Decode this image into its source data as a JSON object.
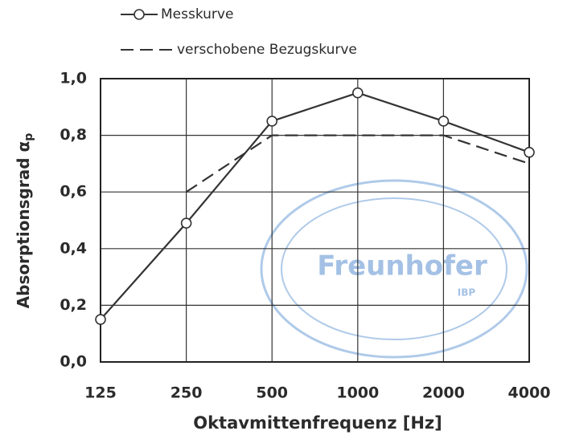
{
  "chart_data": {
    "type": "line",
    "categories": [
      "125",
      "250",
      "500",
      "1000",
      "2000",
      "4000"
    ],
    "series": [
      {
        "name": "Messkurve",
        "color": "#333333",
        "style": "solid",
        "marker": "circle",
        "values": [
          0.15,
          0.49,
          0.85,
          0.95,
          0.85,
          0.74
        ]
      },
      {
        "name": "verschobene Bezugskurve",
        "color": "#333333",
        "style": "dashed",
        "values": [
          null,
          0.6,
          0.8,
          0.8,
          0.8,
          0.7
        ]
      }
    ],
    "ylim": [
      0,
      1
    ],
    "yticks": [
      {
        "value": 0,
        "label": "0,0"
      },
      {
        "value": 0.2,
        "label": "0,2"
      },
      {
        "value": 0.4,
        "label": "0,4"
      },
      {
        "value": 0.6,
        "label": "0,6"
      },
      {
        "value": 0.8,
        "label": "0,8"
      },
      {
        "value": 1,
        "label": "1,0"
      }
    ],
    "y_label": "Absorptionsgrad α",
    "y_label_sub": "p",
    "x_label": "Oktavmittenfrequenz [Hz]",
    "grid": true,
    "stamp": {
      "name": "Freunhofer",
      "sub": "IBP"
    }
  }
}
